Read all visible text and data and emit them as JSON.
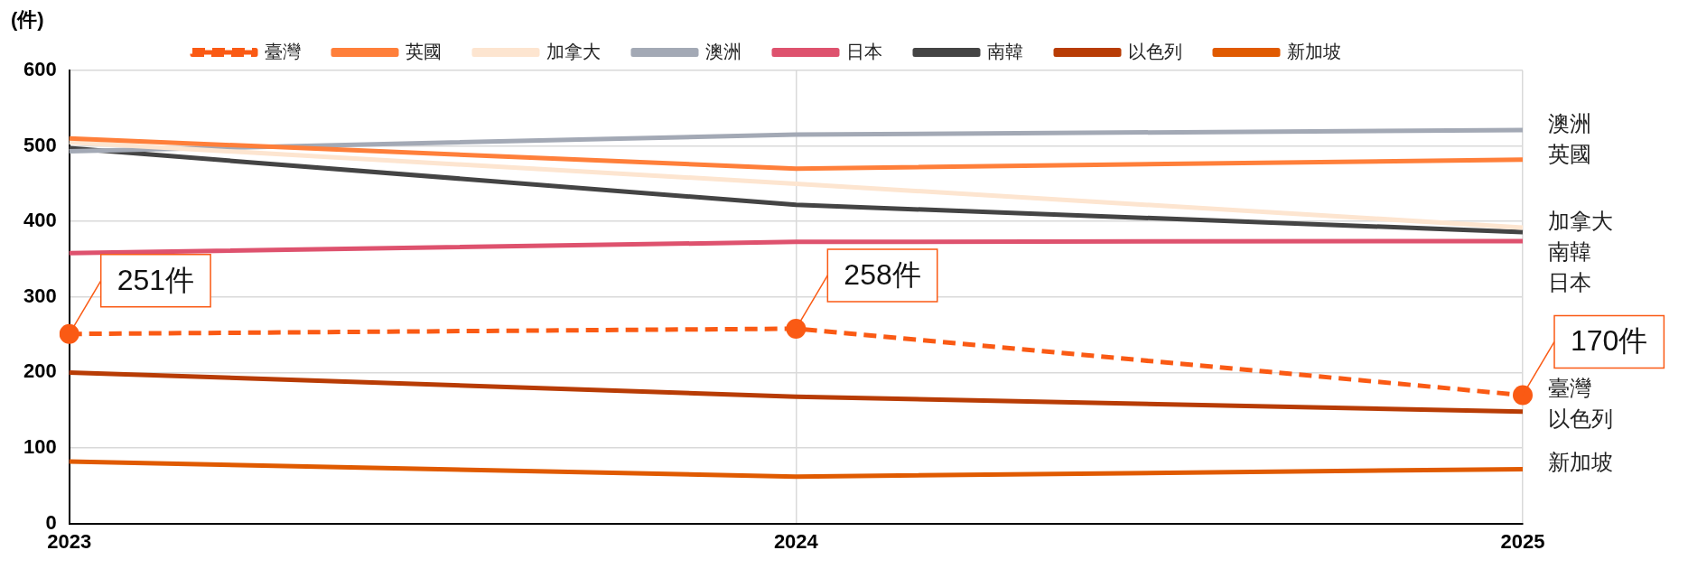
{
  "chart_data": {
    "type": "line",
    "ylabel": "(件)",
    "categories": [
      "2023",
      "2024",
      "2025"
    ],
    "series": [
      {
        "name": "臺灣",
        "color": "#fa5a14",
        "values": [
          251,
          258,
          170
        ],
        "line_style": "dashed",
        "marker": "circle",
        "value_labels": [
          "251件",
          "258件",
          "170件"
        ]
      },
      {
        "name": "英國",
        "color": "#ff7f3a",
        "values": [
          510,
          470,
          482
        ]
      },
      {
        "name": "加拿大",
        "color": "#fde5d0",
        "values": [
          505,
          450,
          392
        ]
      },
      {
        "name": "澳洲",
        "color": "#a3a9b5",
        "values": [
          493,
          515,
          521
        ]
      },
      {
        "name": "日本",
        "color": "#de526e",
        "values": [
          358,
          373,
          374
        ]
      },
      {
        "name": "南韓",
        "color": "#444444",
        "values": [
          497,
          422,
          386
        ]
      },
      {
        "name": "以色列",
        "color": "#b83c05",
        "values": [
          200,
          168,
          148
        ]
      },
      {
        "name": "新加坡",
        "color": "#e05a00",
        "values": [
          82,
          62,
          72
        ]
      }
    ],
    "ylim": [
      0,
      600
    ],
    "yticks": [
      0,
      100,
      200,
      300,
      400,
      500,
      600
    ],
    "grid": true,
    "legend": "top"
  }
}
